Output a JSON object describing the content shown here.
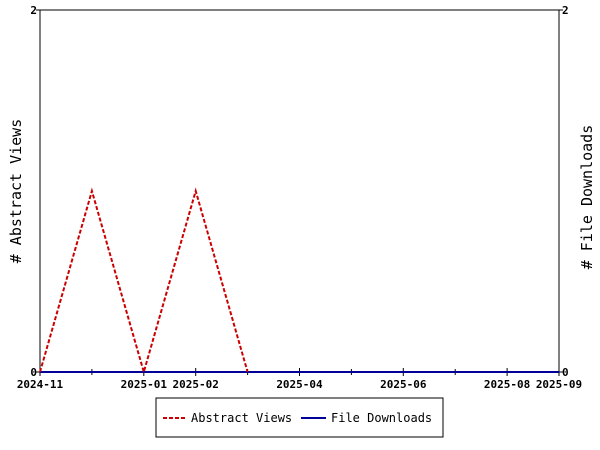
{
  "chart_data": {
    "type": "line",
    "title": "",
    "y_left_label": "# Abstract Views",
    "y_right_label": "# File Downloads",
    "y_left_range": [
      0,
      2
    ],
    "y_right_range": [
      0,
      2
    ],
    "y_left_ticks": [
      "0",
      "2"
    ],
    "y_right_ticks": [
      "0",
      "2"
    ],
    "x_range": [
      "2024-11",
      "2025-09"
    ],
    "x_ticks": [
      {
        "label": "2024-11",
        "month": "2024-11"
      },
      {
        "label": "2025-01",
        "month": "2025-01"
      },
      {
        "label": "2025-02",
        "month": "2025-02"
      },
      {
        "label": "2025-04",
        "month": "2025-04"
      },
      {
        "label": "2025-06",
        "month": "2025-06"
      },
      {
        "label": "2025-08",
        "month": "2025-08"
      },
      {
        "label": "2025-09",
        "month": "2025-09"
      }
    ],
    "x_minor_ticks": [
      "2024-12",
      "2025-03",
      "2025-05",
      "2025-07"
    ],
    "series": [
      {
        "name": "Abstract Views",
        "color": "#cc0000",
        "dash": "dashed",
        "axis": "left",
        "points": [
          {
            "x": "2024-11",
            "y": 0
          },
          {
            "x": "2024-12",
            "y": 1
          },
          {
            "x": "2025-01",
            "y": 0
          },
          {
            "x": "2025-02",
            "y": 1
          },
          {
            "x": "2025-03",
            "y": 0
          }
        ]
      },
      {
        "name": "File Downloads",
        "color": "#000099",
        "dash": "solid",
        "axis": "right",
        "points": [
          {
            "x": "2024-11",
            "y": 0
          },
          {
            "x": "2024-12",
            "y": 0
          },
          {
            "x": "2025-01",
            "y": 0
          },
          {
            "x": "2025-02",
            "y": 0
          },
          {
            "x": "2025-03",
            "y": 0
          },
          {
            "x": "2025-04",
            "y": 0
          },
          {
            "x": "2025-05",
            "y": 0
          },
          {
            "x": "2025-06",
            "y": 0
          },
          {
            "x": "2025-07",
            "y": 0
          },
          {
            "x": "2025-08",
            "y": 0
          },
          {
            "x": "2025-09",
            "y": 0
          }
        ]
      }
    ],
    "legend_position": "bottom-center",
    "grid": false
  }
}
